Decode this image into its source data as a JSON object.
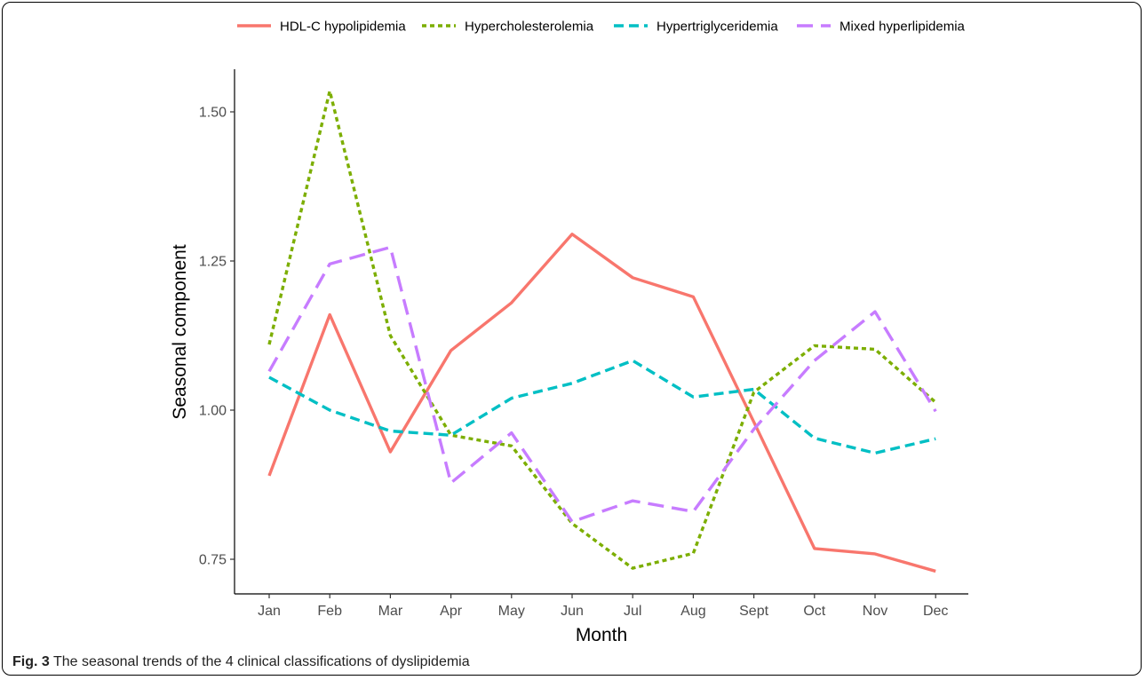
{
  "chart_data": {
    "type": "line",
    "x": [
      "Jan",
      "Feb",
      "Mar",
      "Apr",
      "May",
      "Jun",
      "Jul",
      "Aug",
      "Sept",
      "Oct",
      "Nov",
      "Dec"
    ],
    "xlabel": "Month",
    "ylabel": "Seasonal component",
    "ylim": [
      0.7,
      1.57
    ],
    "yticks": [
      "0.75",
      "1.00",
      "1.25",
      "1.50"
    ],
    "ytick_values": [
      0.75,
      1.0,
      1.25,
      1.5
    ],
    "legend_position": "top",
    "grid": false,
    "series": [
      {
        "name": "HDL-C hypolipidemia",
        "color": "#F8766D",
        "dash": "solid",
        "values": [
          0.89,
          1.16,
          0.93,
          1.1,
          1.18,
          1.295,
          1.222,
          1.19,
          0.98,
          0.768,
          0.759,
          0.73
        ]
      },
      {
        "name": "Hypercholesterolemia",
        "color": "#7CAE00",
        "dash": "dotted",
        "values": [
          1.11,
          1.535,
          1.125,
          0.958,
          0.94,
          0.81,
          0.735,
          0.76,
          1.03,
          1.108,
          1.102,
          1.013
        ]
      },
      {
        "name": "Hypertriglyceridemia",
        "color": "#00BFC4",
        "dash": "dashed",
        "values": [
          1.055,
          1.0,
          0.965,
          0.958,
          1.02,
          1.045,
          1.083,
          1.022,
          1.035,
          0.953,
          0.928,
          0.952
        ]
      },
      {
        "name": "Mixed hyperlipidemia",
        "color": "#C77CFF",
        "dash": "longdash",
        "values": [
          1.065,
          1.245,
          1.273,
          0.878,
          0.962,
          0.813,
          0.848,
          0.83,
          0.968,
          1.083,
          1.165,
          0.998
        ]
      }
    ]
  },
  "caption": {
    "label": "Fig. 3",
    "text": "The seasonal trends of the 4 clinical classifications of dyslipidemia"
  }
}
